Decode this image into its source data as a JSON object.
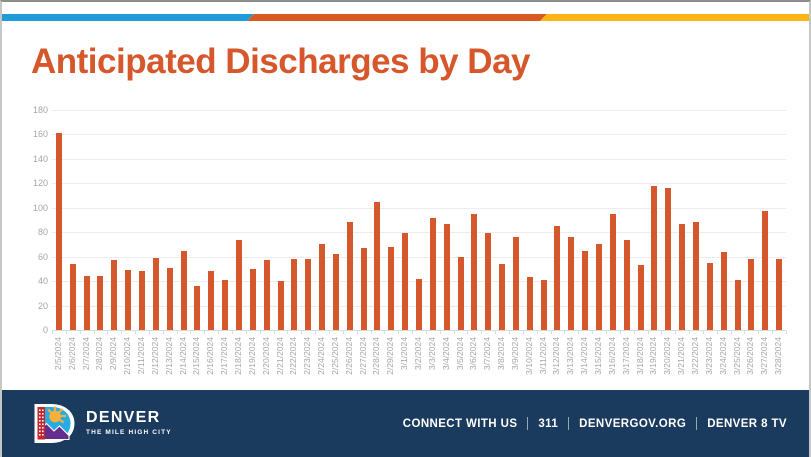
{
  "accent_stripe": {
    "blue": "#1F9CD8",
    "orange": "#D75A25",
    "yellow": "#FCB415"
  },
  "title": {
    "text": "Anticipated Discharges by Day",
    "color": "#D6572B"
  },
  "chart_data": {
    "type": "bar",
    "title": "Anticipated Discharges by Day",
    "categories": [
      "2/5/2024",
      "2/6/2024",
      "2/7/2024",
      "2/8/2024",
      "2/9/2024",
      "2/10/2024",
      "2/11/2024",
      "2/12/2024",
      "2/13/2024",
      "2/14/2024",
      "2/15/2024",
      "2/16/2024",
      "2/17/2024",
      "2/18/2024",
      "2/19/2024",
      "2/20/2024",
      "2/21/2024",
      "2/22/2024",
      "2/23/2024",
      "2/24/2024",
      "2/25/2024",
      "2/26/2024",
      "2/27/2024",
      "2/28/2024",
      "2/29/2024",
      "3/1/2024",
      "3/2/2024",
      "3/3/2024",
      "3/4/2024",
      "3/5/2024",
      "3/6/2024",
      "3/7/2024",
      "3/8/2024",
      "3/9/2024",
      "3/10/2024",
      "3/11/2024",
      "3/12/2024",
      "3/13/2024",
      "3/14/2024",
      "3/15/2024",
      "3/16/2024",
      "3/17/2024",
      "3/18/2024",
      "3/19/2024",
      "3/20/2024",
      "3/21/2024",
      "3/22/2024",
      "3/23/2024",
      "3/24/2024",
      "3/25/2024",
      "3/26/2024",
      "3/27/2024",
      "3/28/2024"
    ],
    "values": [
      161,
      54,
      44,
      44,
      57,
      49,
      48,
      59,
      51,
      65,
      36,
      48,
      41,
      74,
      50,
      57,
      40,
      58,
      58,
      70,
      62,
      88,
      67,
      105,
      68,
      79,
      42,
      92,
      87,
      60,
      95,
      79,
      54,
      76,
      43,
      41,
      85,
      76,
      65,
      70,
      95,
      74,
      53,
      118,
      116,
      87,
      88,
      55,
      64,
      41,
      58,
      97,
      58
    ],
    "xlabel": "",
    "ylabel": "",
    "ylim": [
      0,
      180
    ],
    "ytick_step": 20,
    "yticks": [
      0,
      20,
      40,
      60,
      80,
      100,
      120,
      140,
      160,
      180
    ],
    "grid": true,
    "legend": "none",
    "bar_color": "#D4582B",
    "gridline_color": "#ECECEC",
    "axis_line_color": "#D9D9D9",
    "tick_label_color": "#A6A6A6",
    "x_label_rotation_degrees": 90
  },
  "footer": {
    "background": "#1A3A5E",
    "logo": {
      "icon": "denver-city-d-logo",
      "name": "DENVER",
      "tagline": "THE MILE HIGH CITY"
    },
    "connect": {
      "segments": [
        "CONNECT WITH US",
        "311",
        "DENVERGOV.ORG",
        "DENVER 8 TV"
      ],
      "separator": "|"
    }
  }
}
